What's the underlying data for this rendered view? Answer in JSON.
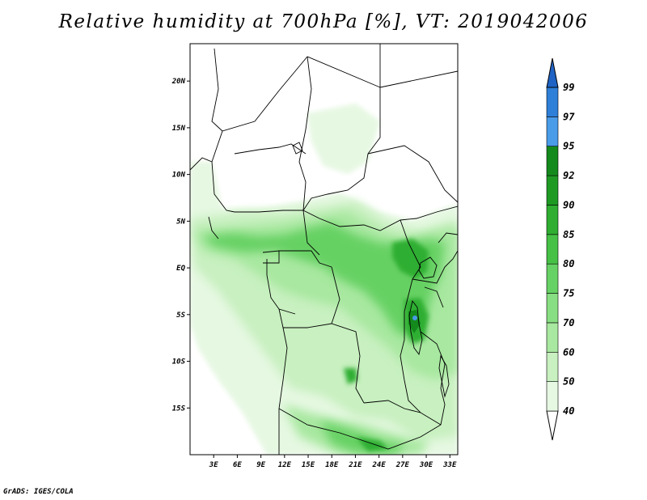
{
  "title": "Relative humidity at 700hPa [%], VT: 2019042006",
  "credit": "GrADS: IGES/COLA",
  "map": {
    "lon_range": [
      0,
      34
    ],
    "lat_range": [
      -20,
      24
    ],
    "lat_ticks": [
      {
        "value": 20,
        "label": "20N"
      },
      {
        "value": 15,
        "label": "15N"
      },
      {
        "value": 10,
        "label": "10N"
      },
      {
        "value": 5,
        "label": "5N"
      },
      {
        "value": 0,
        "label": "EQ"
      },
      {
        "value": -5,
        "label": "5S"
      },
      {
        "value": -10,
        "label": "10S"
      },
      {
        "value": -15,
        "label": "15S"
      }
    ],
    "lon_ticks": [
      {
        "value": 3,
        "label": "3E"
      },
      {
        "value": 6,
        "label": "6E"
      },
      {
        "value": 9,
        "label": "9E"
      },
      {
        "value": 12,
        "label": "12E"
      },
      {
        "value": 15,
        "label": "15E"
      },
      {
        "value": 18,
        "label": "18E"
      },
      {
        "value": 21,
        "label": "21E"
      },
      {
        "value": 24,
        "label": "24E"
      },
      {
        "value": 27,
        "label": "27E"
      },
      {
        "value": 30,
        "label": "30E"
      },
      {
        "value": 33,
        "label": "33E"
      }
    ]
  },
  "colorbar": {
    "levels": [
      "40",
      "50",
      "60",
      "70",
      "75",
      "80",
      "85",
      "90",
      "92",
      "95",
      "97",
      "99"
    ],
    "colors": [
      "#ffffff",
      "#e6f8e2",
      "#c8f0c0",
      "#a8e8a0",
      "#88de82",
      "#66d164",
      "#46c146",
      "#2fae31",
      "#1e9a23",
      "#148a1c",
      "#4a9be8",
      "#2e7fd8",
      "#1f63c4"
    ]
  }
}
